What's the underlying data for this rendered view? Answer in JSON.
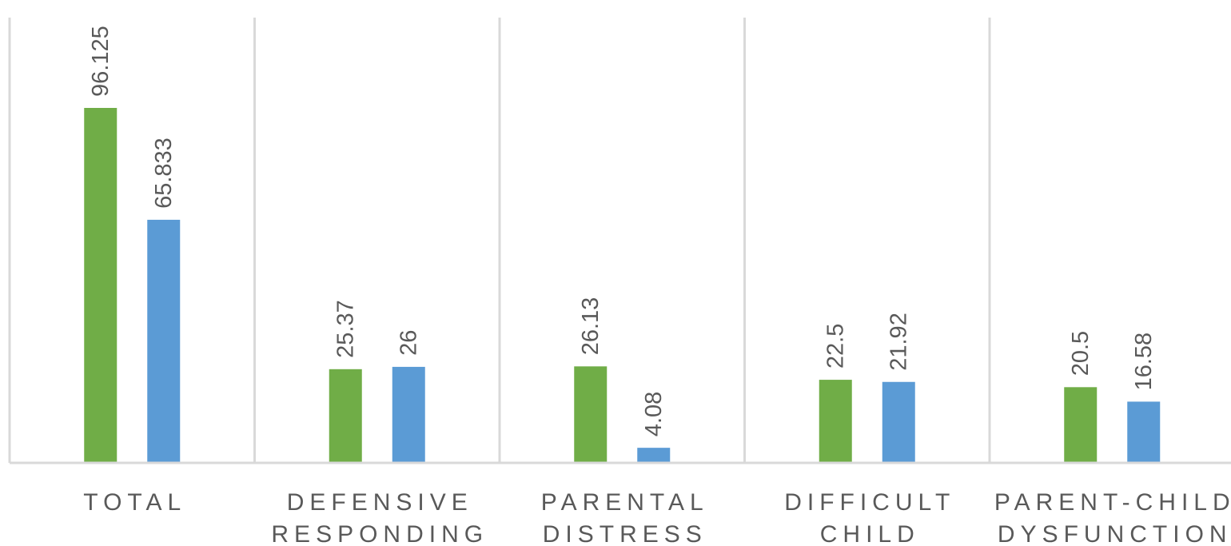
{
  "chart_data": {
    "type": "bar",
    "categories": [
      [
        "TOTAL"
      ],
      [
        "DEFENSIVE",
        "RESPONDING"
      ],
      [
        "PARENTAL",
        "DISTRESS"
      ],
      [
        "DIFFICULT",
        "CHILD"
      ],
      [
        "PARENT-CHILD",
        "DYSFUNCTION"
      ]
    ],
    "series": [
      {
        "color": "#70AD47",
        "values": [
          96.125,
          25.37,
          26.13,
          22.5,
          20.5
        ],
        "labels": [
          "96.125",
          "25.37",
          "26.13",
          "22.5",
          "20.5"
        ]
      },
      {
        "color": "#5B9BD5",
        "values": [
          65.833,
          26,
          4.08,
          21.92,
          16.58
        ],
        "labels": [
          "65.833",
          "26",
          "4.08",
          "21.92",
          "16.58"
        ]
      }
    ],
    "ylim": [
      0,
      120
    ],
    "grid": "vertical category separators",
    "axis_color": "#D9D9D9",
    "text_color": "#595959",
    "legend": "none"
  }
}
